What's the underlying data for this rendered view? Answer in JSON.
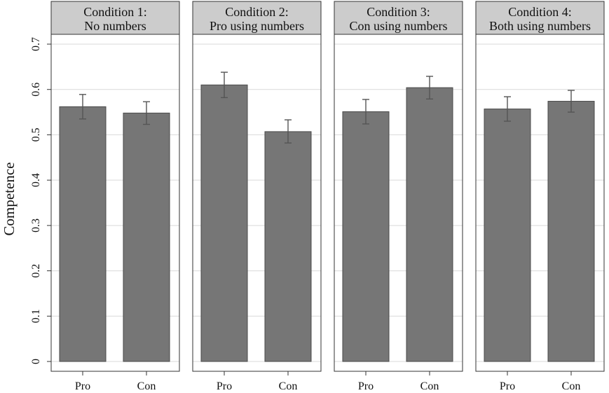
{
  "chart_data": {
    "type": "bar",
    "ylabel": "Competence",
    "ylim": [
      0,
      0.7
    ],
    "yticks": [
      0,
      0.1,
      0.2,
      0.3,
      0.4,
      0.5,
      0.6,
      0.7
    ],
    "ytick_labels": [
      "0",
      "0.1",
      "0.2",
      "0.3",
      "0.4",
      "0.5",
      "0.6",
      "0.7"
    ],
    "grid": true,
    "categories": [
      "Pro",
      "Con"
    ],
    "bar_color": "#767676",
    "panels": [
      {
        "title_line1": "Condition 1:",
        "title_line2": "No numbers",
        "values": [
          0.562,
          0.548
        ],
        "ci_low": [
          0.535,
          0.523
        ],
        "ci_high": [
          0.589,
          0.573
        ]
      },
      {
        "title_line1": "Condition 2:",
        "title_line2": "Pro using numbers",
        "values": [
          0.61,
          0.507
        ],
        "ci_low": [
          0.582,
          0.482
        ],
        "ci_high": [
          0.638,
          0.533
        ]
      },
      {
        "title_line1": "Condition 3:",
        "title_line2": "Con using numbers",
        "values": [
          0.551,
          0.604
        ],
        "ci_low": [
          0.524,
          0.579
        ],
        "ci_high": [
          0.578,
          0.629
        ]
      },
      {
        "title_line1": "Condition 4:",
        "title_line2": "Both using numbers",
        "values": [
          0.557,
          0.574
        ],
        "ci_low": [
          0.53,
          0.55
        ],
        "ci_high": [
          0.584,
          0.598
        ]
      }
    ]
  }
}
